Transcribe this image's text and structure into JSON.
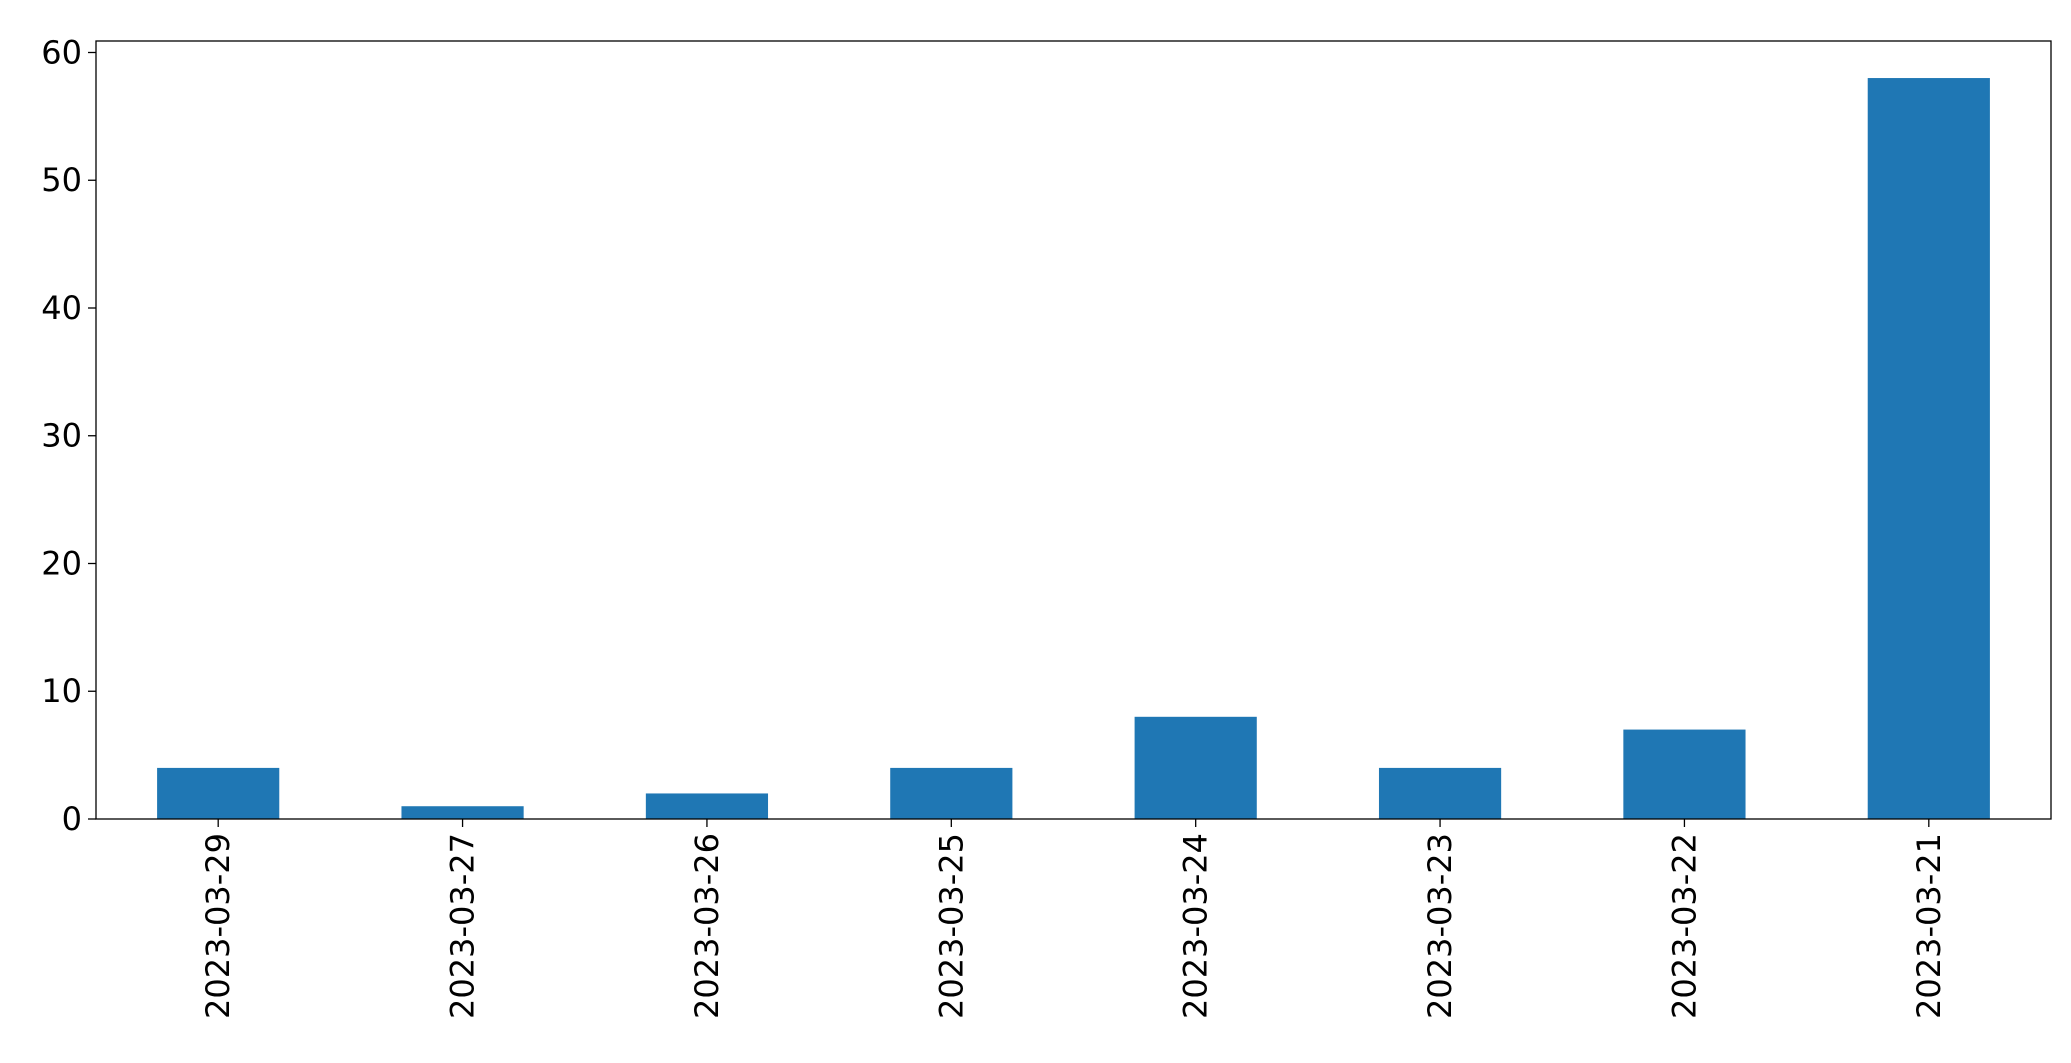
{
  "chart_data": {
    "type": "bar",
    "categories": [
      "2023-03-29",
      "2023-03-27",
      "2023-03-26",
      "2023-03-25",
      "2023-03-24",
      "2023-03-23",
      "2023-03-22",
      "2023-03-21"
    ],
    "values": [
      4,
      1,
      2,
      4,
      8,
      4,
      7,
      58
    ],
    "color": "#1f77b4",
    "ylim": [
      0,
      60.9
    ],
    "yticks": [
      0,
      10,
      20,
      30,
      40,
      50,
      60
    ],
    "grid": false
  }
}
